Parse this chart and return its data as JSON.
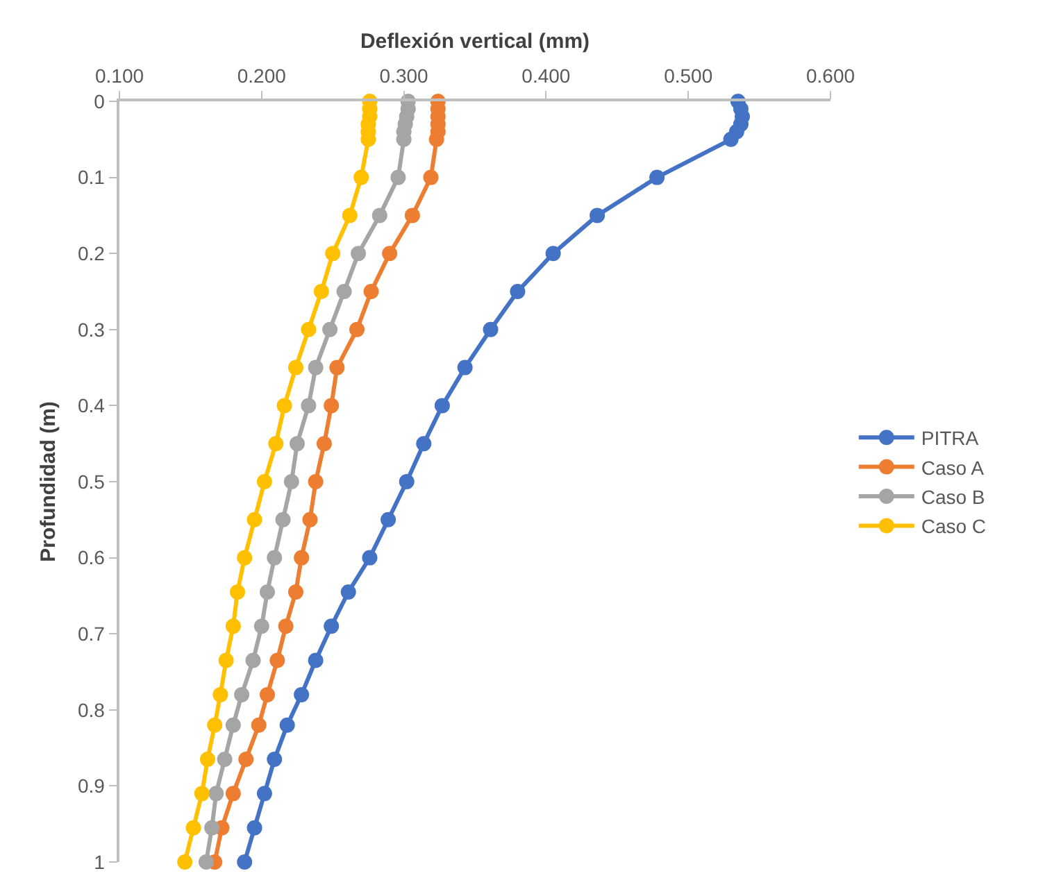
{
  "chart_data": {
    "type": "line",
    "xlabel": "Deflexión vertical (mm)",
    "ylabel": "Profundidad (m)",
    "series": [
      {
        "name": "PITRA",
        "color": "#4472c4",
        "x": [
          0.535,
          0.537,
          0.538,
          0.537,
          0.534,
          0.53,
          0.478,
          0.436,
          0.405,
          0.38,
          0.361,
          0.343,
          0.327,
          0.314,
          0.302,
          0.289,
          0.276,
          0.261,
          0.249,
          0.238,
          0.228,
          0.218,
          0.209,
          0.202,
          0.195,
          0.188
        ],
        "values": [
          0,
          0.01,
          0.02,
          0.03,
          0.04,
          0.05,
          0.1,
          0.15,
          0.2,
          0.25,
          0.3,
          0.35,
          0.4,
          0.45,
          0.5,
          0.55,
          0.6,
          0.645,
          0.69,
          0.735,
          0.78,
          0.82,
          0.865,
          0.91,
          0.955,
          1.0
        ]
      },
      {
        "name": "Caso A",
        "color": "#ed7d31",
        "x": [
          0.324,
          0.324,
          0.324,
          0.324,
          0.324,
          0.323,
          0.319,
          0.306,
          0.29,
          0.277,
          0.267,
          0.253,
          0.249,
          0.244,
          0.238,
          0.234,
          0.228,
          0.224,
          0.217,
          0.211,
          0.204,
          0.198,
          0.189,
          0.18,
          0.172,
          0.167
        ],
        "values": [
          0,
          0.01,
          0.02,
          0.03,
          0.04,
          0.05,
          0.1,
          0.15,
          0.2,
          0.25,
          0.3,
          0.35,
          0.4,
          0.45,
          0.5,
          0.55,
          0.6,
          0.645,
          0.69,
          0.735,
          0.78,
          0.82,
          0.865,
          0.91,
          0.955,
          1.0
        ]
      },
      {
        "name": "Caso B",
        "color": "#a5a5a5",
        "x": [
          0.303,
          0.303,
          0.302,
          0.301,
          0.3,
          0.3,
          0.296,
          0.283,
          0.268,
          0.258,
          0.248,
          0.238,
          0.233,
          0.225,
          0.221,
          0.215,
          0.209,
          0.204,
          0.2,
          0.194,
          0.186,
          0.18,
          0.174,
          0.168,
          0.165,
          0.161
        ],
        "values": [
          0,
          0.01,
          0.02,
          0.03,
          0.04,
          0.05,
          0.1,
          0.15,
          0.2,
          0.25,
          0.3,
          0.35,
          0.4,
          0.45,
          0.5,
          0.55,
          0.6,
          0.645,
          0.69,
          0.735,
          0.78,
          0.82,
          0.865,
          0.91,
          0.955,
          1.0
        ]
      },
      {
        "name": "Caso C",
        "color": "#ffc000",
        "x": [
          0.276,
          0.276,
          0.276,
          0.275,
          0.275,
          0.275,
          0.27,
          0.262,
          0.25,
          0.242,
          0.233,
          0.224,
          0.216,
          0.21,
          0.202,
          0.195,
          0.188,
          0.183,
          0.18,
          0.175,
          0.171,
          0.167,
          0.162,
          0.158,
          0.152,
          0.146
        ],
        "values": [
          0,
          0.01,
          0.02,
          0.03,
          0.04,
          0.05,
          0.1,
          0.15,
          0.2,
          0.25,
          0.3,
          0.35,
          0.4,
          0.45,
          0.5,
          0.55,
          0.6,
          0.645,
          0.69,
          0.735,
          0.78,
          0.82,
          0.865,
          0.91,
          0.955,
          1.0
        ]
      }
    ],
    "xlim": [
      0.1,
      0.6
    ],
    "xticks": [
      {
        "value": 0.1,
        "label": "0.100"
      },
      {
        "value": 0.2,
        "label": "0.200"
      },
      {
        "value": 0.3,
        "label": "0.300"
      },
      {
        "value": 0.4,
        "label": "0.400"
      },
      {
        "value": 0.5,
        "label": "0.500"
      },
      {
        "value": 0.6,
        "label": "0.600"
      }
    ],
    "ylim": [
      1,
      0
    ],
    "yticks": [
      0,
      0.1,
      0.2,
      0.3,
      0.4,
      0.5,
      0.6,
      0.7,
      0.8,
      0.9,
      1
    ],
    "marker": "circle",
    "line_style": "solid",
    "legend": "right"
  }
}
